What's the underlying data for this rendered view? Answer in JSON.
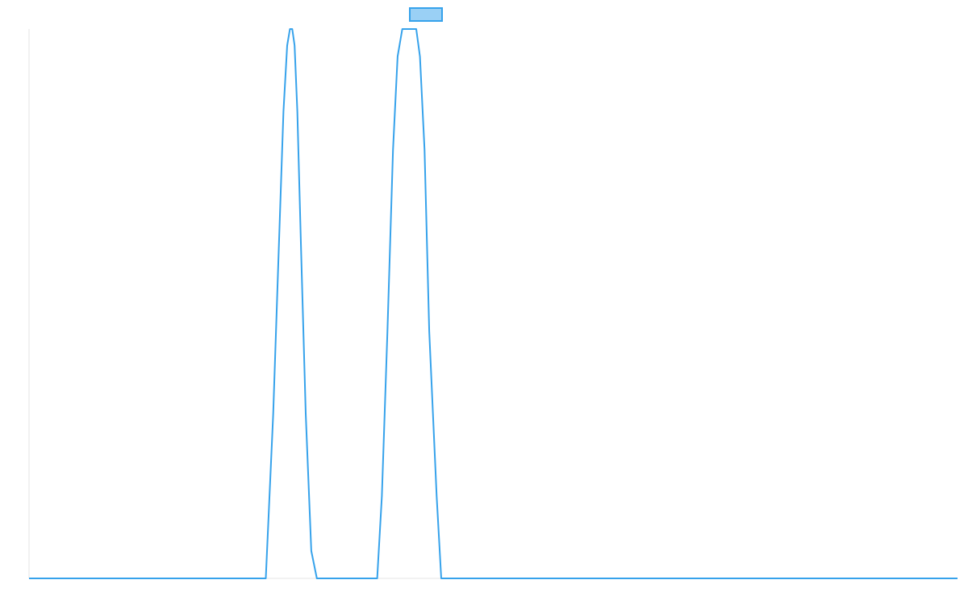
{
  "colors": {
    "line": "#36a2eb",
    "legend_fill": "#9ad0f5",
    "axis": "#e5e5e5"
  },
  "legend": {
    "label": "",
    "position": "top-center"
  },
  "chart_data": {
    "type": "line",
    "title": "",
    "xlabel": "",
    "ylabel": "",
    "grid": false,
    "xlim": [
      0,
      100
    ],
    "ylim": [
      0,
      1
    ],
    "series": [
      {
        "name": "",
        "x": [
          0,
          25.5,
          26.3,
          26.9,
          27.4,
          27.8,
          28.1,
          28.35,
          28.6,
          28.9,
          29.3,
          29.8,
          30.4,
          31.0,
          31.5,
          37.5,
          38.0,
          38.6,
          39.2,
          39.7,
          40.2,
          40.5,
          40.7,
          40.9,
          41.1,
          41.3,
          41.5,
          41.7,
          42.1,
          42.6,
          43.1,
          43.9,
          44.4,
          45.2,
          50.0,
          60.0,
          70.0,
          80.0,
          90.0,
          100.0
        ],
        "y": [
          0,
          0,
          0.3,
          0.6,
          0.85,
          0.97,
          1.0,
          1.0,
          0.97,
          0.85,
          0.6,
          0.3,
          0.05,
          0,
          0,
          0,
          0.15,
          0.45,
          0.78,
          0.95,
          1.0,
          1.0,
          1.0,
          1.0,
          1.0,
          1.0,
          1.0,
          1.0,
          0.95,
          0.78,
          0.45,
          0.15,
          0,
          0,
          0,
          0,
          0,
          0,
          0,
          0
        ]
      }
    ]
  }
}
